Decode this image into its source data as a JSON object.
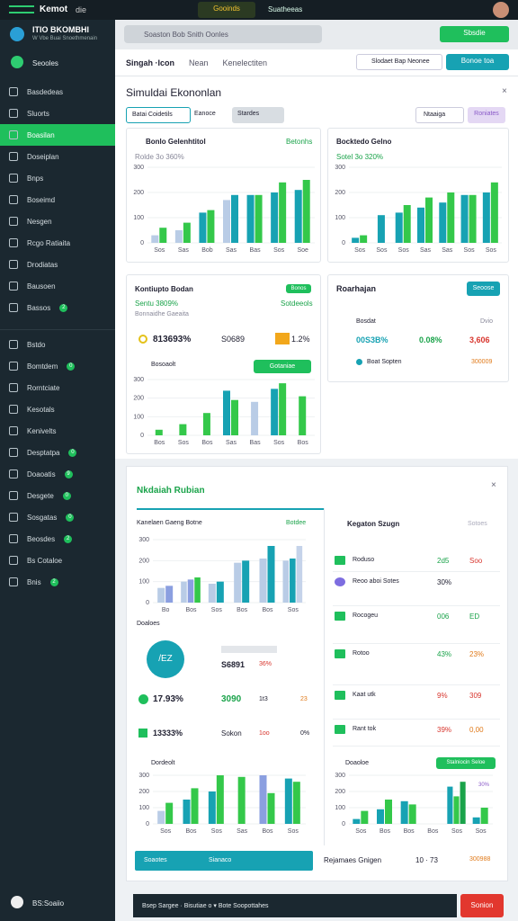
{
  "topbar": {
    "brand": "Kemot",
    "brand_suffix": "die",
    "tab_active": "Gooinds",
    "tab_second": "Suatheeas"
  },
  "sidebar": {
    "title": "ITIO BKOMBHI",
    "subtitle": "W Vbe Buai Snoethmenain",
    "profile": "Seooles",
    "groups": [
      [
        {
          "label": "Basdedeas"
        },
        {
          "label": "Sluorts"
        },
        {
          "label": "Boasilan",
          "active": true
        },
        {
          "label": "Doseiplan"
        },
        {
          "label": "Bnps"
        },
        {
          "label": "Boseimd"
        },
        {
          "label": "Nesgen"
        },
        {
          "label": "Rcgo Ratiaita"
        },
        {
          "label": "Drodiatas"
        },
        {
          "label": "Bausoen"
        },
        {
          "label": "Bassos",
          "badge": "2"
        }
      ],
      [
        {
          "label": "Bstdo"
        },
        {
          "label": "Bomtdem",
          "badge": "0"
        },
        {
          "label": "Rorntciate"
        },
        {
          "label": "Kesotals"
        },
        {
          "label": "Kenivelts"
        },
        {
          "label": "Desptatpa",
          "badge": "0"
        },
        {
          "label": "Doaoatis",
          "badge": "9"
        },
        {
          "label": "Desgete",
          "badge": "0"
        },
        {
          "label": "Sosgatas",
          "badge": "0"
        },
        {
          "label": "Beosdes",
          "badge": "2"
        },
        {
          "label": "Bs Cotaloe"
        },
        {
          "label": "Bnis",
          "badge": "2"
        }
      ]
    ],
    "footer": "BS:Soaiio"
  },
  "header": {
    "search": "Soaston Bob Snith Oonles",
    "button": "Sbsdie"
  },
  "tabs": {
    "items": [
      "Singah ·Icon",
      "Nean",
      "Kenelectiten"
    ],
    "search": "Slodaet Bap Neonee",
    "button": "Bonoe toa"
  },
  "panel1": {
    "title": "Simuldai Ekononlan",
    "tabs": [
      "Batai Coidetils",
      "Eanoce",
      "Stardes"
    ],
    "select": "Ntaaiga",
    "select_button": "Roniates",
    "card1": {
      "title": "Bonlo Gelenhtitol",
      "tag": "Betonhs",
      "subtitle": "Rolde 3o 360%",
      "chart": {
        "ylim": [
          0,
          300
        ],
        "yticks": [
          0,
          100,
          200,
          300
        ],
        "categories": [
          "Sos",
          "Sas",
          "Bob",
          "Sas",
          "Bas",
          "Sos",
          "Soe"
        ],
        "series": [
          {
            "color": "#b9cce6",
            "values": [
              30,
              50,
              null,
              170,
              null,
              null,
              null
            ]
          },
          {
            "color": "#17a2b3",
            "values": [
              null,
              null,
              120,
              190,
              190,
              200,
              210
            ]
          },
          {
            "color": "#34c84a",
            "values": [
              60,
              80,
              130,
              null,
              190,
              240,
              250
            ]
          }
        ]
      }
    },
    "card2": {
      "title": "Bocktedo Gelno",
      "subtitle": "Sotel 3o 320%",
      "chart": {
        "ylim": [
          0,
          300
        ],
        "yticks": [
          0,
          100,
          200,
          300
        ],
        "categories": [
          "Sos",
          "Sos",
          "Sos",
          "Sas",
          "Sas",
          "Sos",
          "Sos"
        ],
        "series": [
          {
            "color": "#17a2b3",
            "values": [
              20,
              110,
              120,
              140,
              160,
              190,
              200
            ]
          },
          {
            "color": "#34c84a",
            "values": [
              30,
              null,
              150,
              180,
              200,
              190,
              240
            ]
          }
        ]
      }
    },
    "card3": {
      "title": "Kontiupto Bodan",
      "tag": "Bonos",
      "subtitle": "Sentu 3809%",
      "note": "Bonnaidhe Gaeaita",
      "tag2": "Sotdeeols",
      "stat1": "813693%",
      "stat2": "S0689",
      "stat3": "1.2%",
      "chart_title": "Bosoaolt",
      "chart_button": "Gotaniae",
      "chart": {
        "ylim": [
          0,
          300
        ],
        "yticks": [
          0,
          100,
          200,
          300
        ],
        "categories": [
          "Bos",
          "Sos",
          "Bos",
          "Sas",
          "Bas",
          "Sos",
          "Bos"
        ],
        "series": [
          {
            "color": "#b9cce6",
            "values": [
              null,
              null,
              null,
              null,
              180,
              null,
              null
            ]
          },
          {
            "color": "#17a2b3",
            "values": [
              null,
              null,
              null,
              240,
              null,
              250,
              null
            ]
          },
          {
            "color": "#34c84a",
            "values": [
              30,
              60,
              120,
              190,
              null,
              280,
              210
            ]
          }
        ]
      }
    },
    "card4": {
      "title": "Roarhajan",
      "button": "Seoose",
      "row1": {
        "label": "Bosdat",
        "right": "Dvio"
      },
      "row2": {
        "a": "00S3B%",
        "b": "0.08%",
        "c": "3,606"
      },
      "row3": {
        "label": "Boat Sopten",
        "right": "300009"
      }
    }
  },
  "panel2": {
    "title": "Nkdaiah Rubian",
    "left_chart": {
      "title": "Kanelaen Gaeng Botne",
      "tag": "Botdee",
      "legend": "Doaloes",
      "chart": {
        "ylim": [
          0,
          300
        ],
        "yticks": [
          0,
          100,
          200,
          300
        ],
        "categories": [
          "Bo",
          "Bos",
          "Sos",
          "Bos",
          "Bos",
          "Sos"
        ],
        "series": [
          {
            "color": "#b9cce6",
            "values": [
              70,
              100,
              90,
              190,
              210,
              200
            ]
          },
          {
            "color": "#8b9fe0",
            "values": [
              80,
              110,
              null,
              null,
              null,
              null
            ]
          },
          {
            "color": "#17a2b3",
            "values": [
              null,
              null,
              100,
              200,
              270,
              210
            ]
          },
          {
            "color": "#34c84a",
            "values": [
              null,
              120,
              null,
              null,
              null,
              null
            ]
          },
          {
            "color": "#c5d3ea",
            "values": [
              null,
              null,
              null,
              null,
              null,
              270
            ]
          }
        ]
      }
    },
    "rows": [
      {
        "a": "/EZ",
        "b": "S6891",
        "c": "36%"
      },
      {
        "a": "17.93%",
        "b": "3090",
        "c": "1t3",
        "d": "23"
      },
      {
        "a": "13333%",
        "b": "Sokon",
        "c": "1oo",
        "d": "0%"
      }
    ],
    "bottom_left": {
      "title": "Dordeolt",
      "chart": {
        "ylim": [
          0,
          300
        ],
        "yticks": [
          0,
          100,
          200,
          300
        ],
        "categories": [
          "Sos",
          "Bos",
          "Sos",
          "Sas",
          "Bos",
          "Sos"
        ],
        "series": [
          {
            "color": "#b9cce6",
            "values": [
              80,
              null,
              null,
              null,
              null,
              null
            ]
          },
          {
            "color": "#8b9fe0",
            "values": [
              null,
              null,
              null,
              null,
              300,
              null
            ]
          },
          {
            "color": "#17a2b3",
            "values": [
              null,
              150,
              200,
              null,
              null,
              280
            ]
          },
          {
            "color": "#34c84a",
            "values": [
              130,
              220,
              300,
              290,
              190,
              260
            ]
          }
        ]
      }
    },
    "right": {
      "title": "Kegaton Szugn",
      "filter": "Sotoes",
      "rows": [
        {
          "label": "Roduso",
          "v1": "2d5",
          "v2": "Soo"
        },
        {
          "label": "Reoo aboi Sotes",
          "v1": "30%",
          "v2": ""
        },
        {
          "label": "Rocogeu",
          "v1": "006",
          "v2": "ED"
        },
        {
          "label": "Rotoo",
          "v1": "43%",
          "v2": "23%"
        },
        {
          "label": "Kaat utk",
          "v1": "9%",
          "v2": "309"
        },
        {
          "label": "Rant tok",
          "v1": "39%",
          "v2": "0,00"
        }
      ],
      "chart_title": "Doaoloe",
      "chart_button": "Stalniocin Seloe",
      "chart_tag": "30%",
      "chart": {
        "ylim": [
          0,
          300
        ],
        "yticks": [
          0,
          100,
          200,
          300
        ],
        "categories": [
          "Sos",
          "Bos",
          "Bos",
          "Bos",
          "Sos",
          "Sos"
        ],
        "series": [
          {
            "color": "#17a2b3",
            "values": [
              30,
              90,
              140,
              null,
              230,
              40
            ]
          },
          {
            "color": "#34c84a",
            "values": [
              80,
              150,
              120,
              null,
              170,
              100
            ]
          },
          {
            "color": "#1aa34a",
            "values": [
              null,
              null,
              null,
              null,
              260,
              null
            ]
          }
        ]
      }
    },
    "strip": {
      "a": "Soaotes",
      "b": "Sianaco",
      "c": "Rejamaes Gnigen",
      "d": "10 · 73",
      "e": "300988"
    }
  },
  "footer": {
    "input": "Bsep Sargee · Bisutiae o ▾ Bote Soopottahes",
    "button": "Sonion"
  }
}
